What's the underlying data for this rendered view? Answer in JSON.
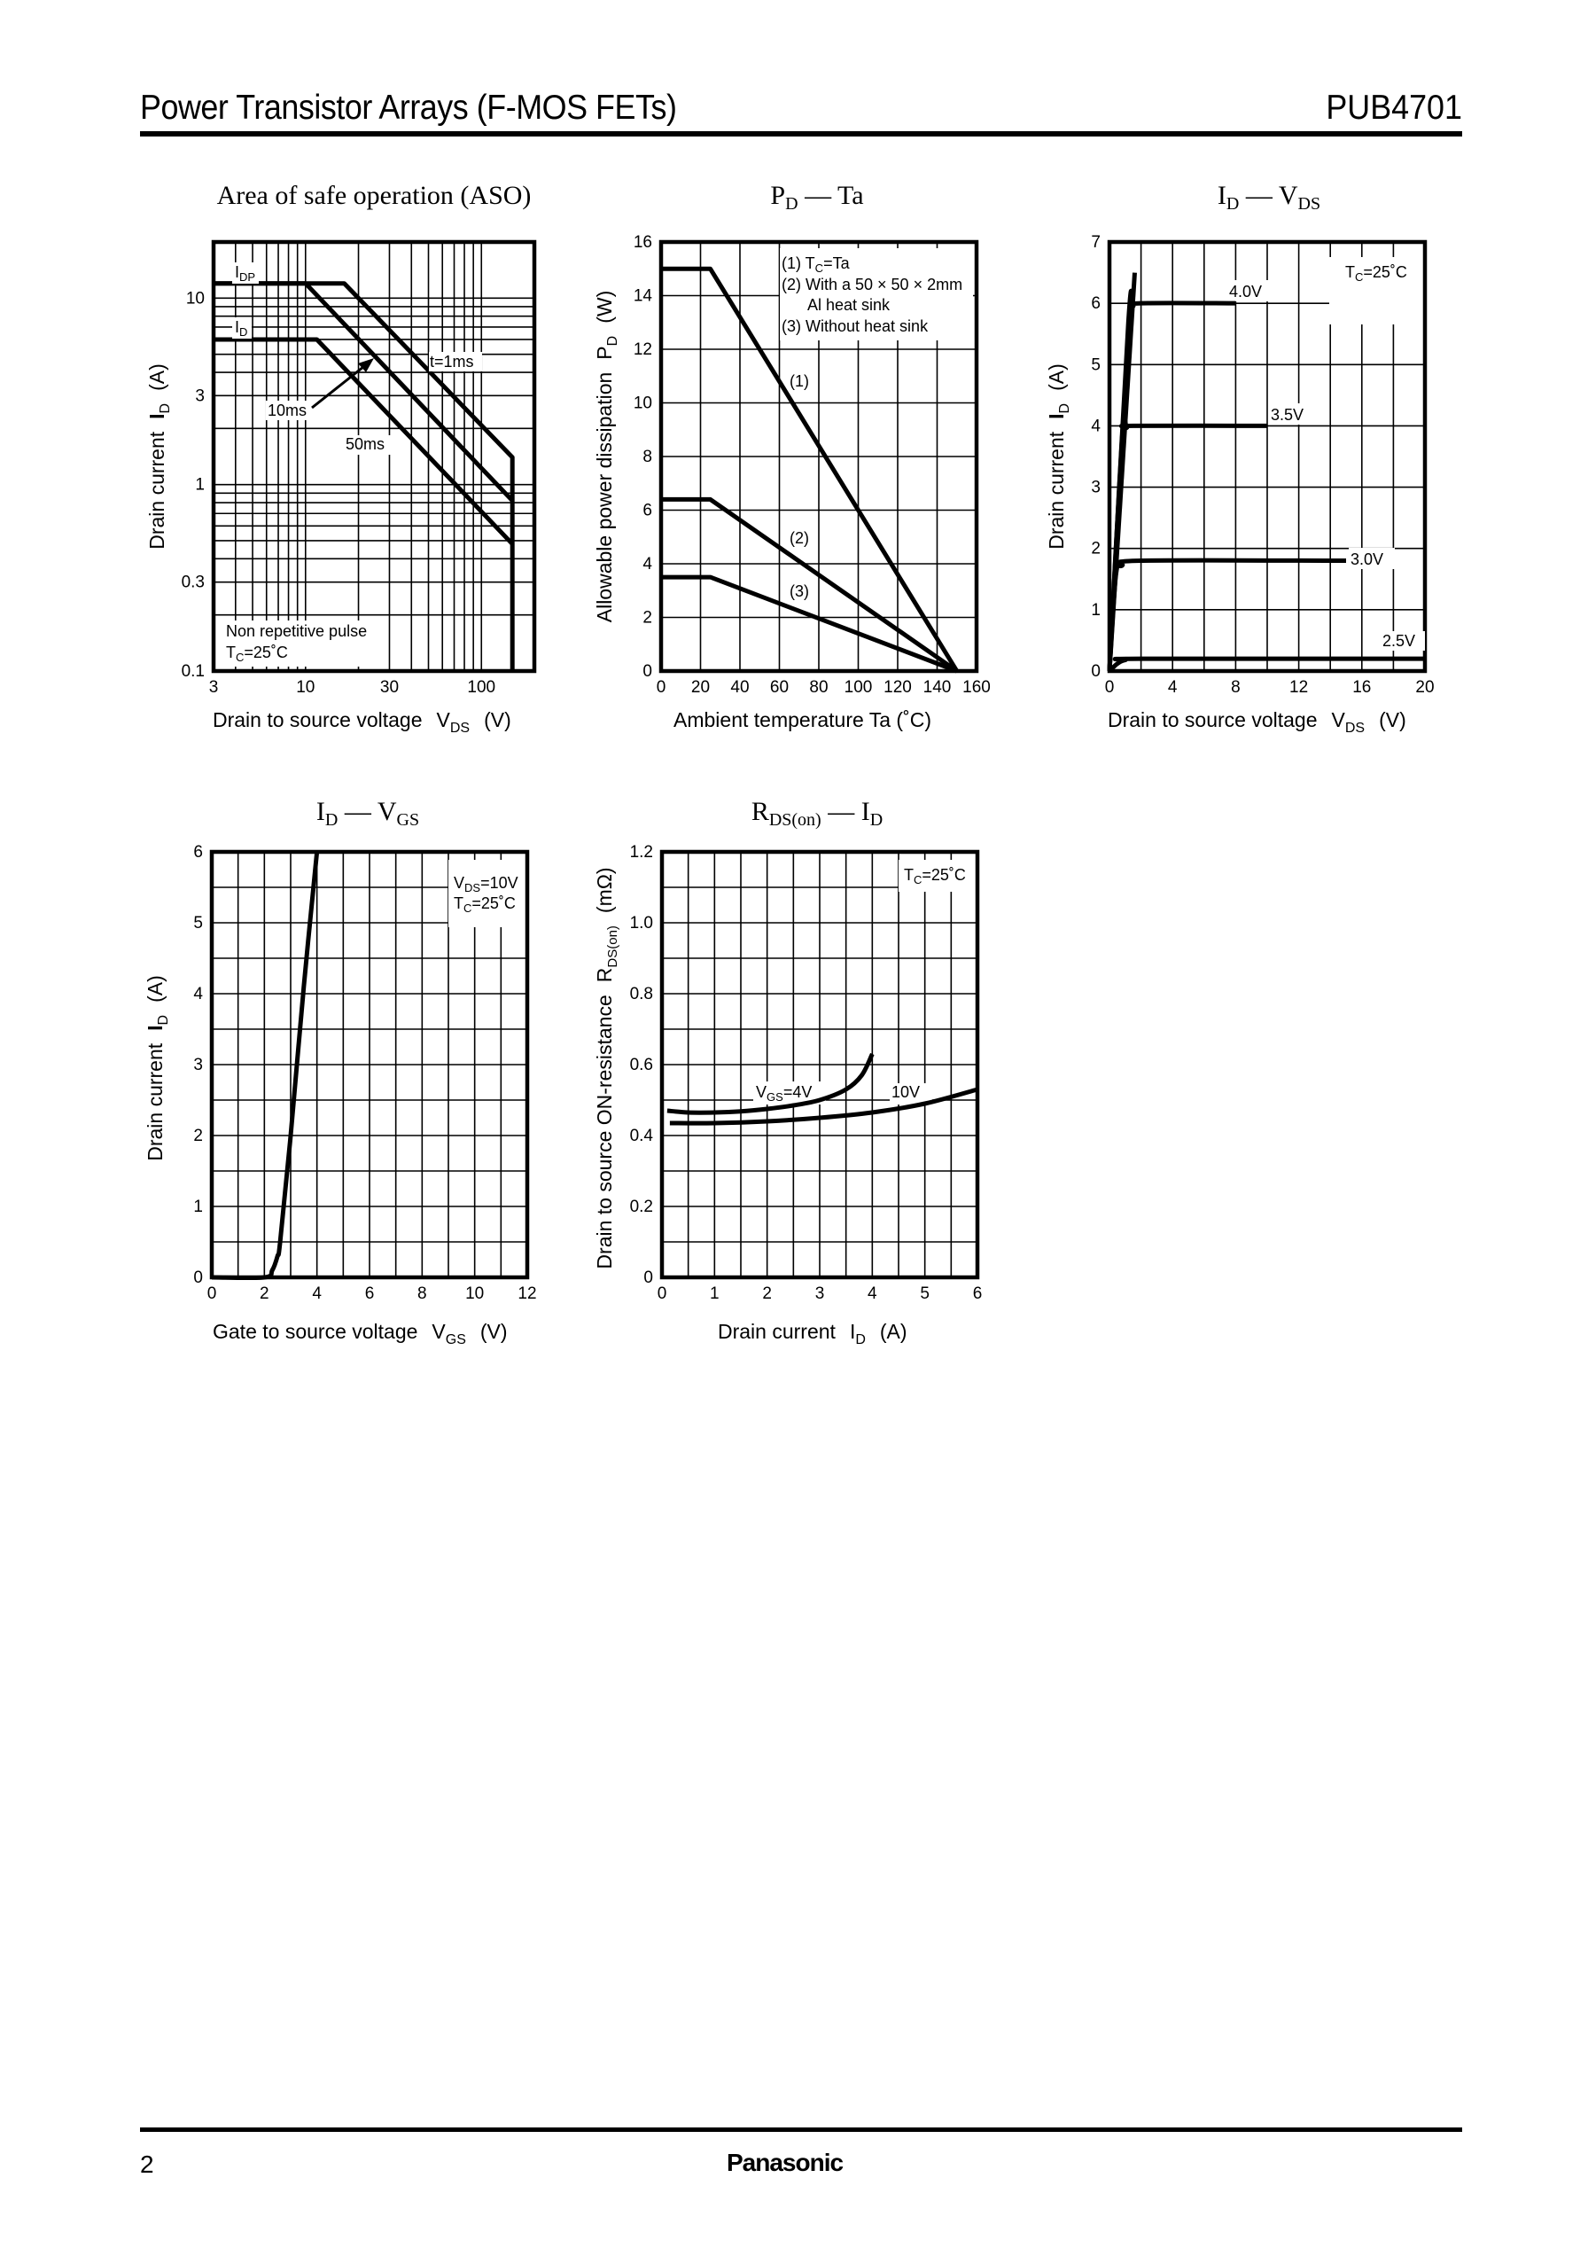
{
  "header": {
    "title": "Power Transistor Arrays (F-MOS FETs)",
    "part_number": "PUB4701"
  },
  "footer": {
    "page_number": "2",
    "brand": "Panasonic"
  },
  "chart_data": [
    {
      "id": "aso",
      "type": "line",
      "title": "Area of safe operation (ASO)",
      "xlabel": "Drain to source voltage VDS (V)",
      "ylabel": "Drain current ID (A)",
      "xscale": "log",
      "yscale": "log",
      "xlim": [
        3,
        200
      ],
      "ylim": [
        0.1,
        20
      ],
      "xticks": [
        3,
        10,
        30,
        100
      ],
      "yticks": [
        0.1,
        0.3,
        1,
        3,
        10
      ],
      "grid": true,
      "annotations": [
        "IDP",
        "ID",
        "t=1ms",
        "10ms",
        "50ms",
        "Non repetitive pulse",
        "TC=25°C"
      ],
      "series": [
        {
          "name": "t=1ms",
          "x": [
            3,
            16.6,
            150,
            150
          ],
          "y": [
            12,
            12,
            1.4,
            0.1
          ]
        },
        {
          "name": "10ms",
          "x": [
            3,
            10,
            150
          ],
          "y": [
            12,
            12,
            0.82
          ]
        },
        {
          "name": "50ms",
          "x": [
            3,
            11.6,
            150
          ],
          "y": [
            6,
            6,
            0.48
          ]
        }
      ],
      "labels": {
        "IDP": 12,
        "ID": 6
      }
    },
    {
      "id": "pd_ta",
      "type": "line",
      "title": "PD — Ta",
      "xlabel": "Ambient temperature Ta (°C)",
      "ylabel": "Allowable power dissipation PD (W)",
      "xlim": [
        0,
        160
      ],
      "ylim": [
        0,
        16
      ],
      "xticks": [
        0,
        20,
        40,
        60,
        80,
        100,
        120,
        140,
        160
      ],
      "yticks": [
        0,
        2,
        4,
        6,
        8,
        10,
        12,
        14,
        16
      ],
      "grid": true,
      "legend": [
        "(1) TC=Ta",
        "(2) With a 50 × 50 × 2mm Al heat sink",
        "(3) Without heat sink"
      ],
      "series": [
        {
          "name": "(1)",
          "x": [
            0,
            25,
            150
          ],
          "y": [
            15,
            15,
            0
          ]
        },
        {
          "name": "(2)",
          "x": [
            0,
            25,
            150
          ],
          "y": [
            6.4,
            6.4,
            0
          ]
        },
        {
          "name": "(3)",
          "x": [
            0,
            25,
            150
          ],
          "y": [
            3.5,
            3.5,
            0
          ]
        }
      ]
    },
    {
      "id": "id_vds",
      "type": "line",
      "title": "ID — VDS",
      "xlabel": "Drain to source voltage VDS (V)",
      "ylabel": "Drain current ID (A)",
      "xlim": [
        0,
        20
      ],
      "ylim": [
        0,
        7
      ],
      "xticks": [
        0,
        4,
        8,
        12,
        16,
        20
      ],
      "yticks": [
        0,
        1,
        2,
        3,
        4,
        5,
        6,
        7
      ],
      "grid": true,
      "annotation": "TC=25°C",
      "series": [
        {
          "name": "VGS=4.0V",
          "x": [
            0,
            1.2,
            1.5,
            2,
            8
          ],
          "y": [
            0,
            5.7,
            5.95,
            6.0,
            6.0
          ]
        },
        {
          "name": "VGS=3.5V",
          "x": [
            0,
            0.8,
            1.1,
            1.5,
            10
          ],
          "y": [
            0,
            3.8,
            3.97,
            4.0,
            4.0
          ]
        },
        {
          "name": "VGS=3.0V",
          "x": [
            0,
            0.4,
            0.8,
            2,
            15
          ],
          "y": [
            0,
            1.55,
            1.72,
            1.8,
            1.8
          ]
        },
        {
          "name": "VGS=2.5V",
          "x": [
            0,
            0.5,
            1,
            2,
            20
          ],
          "y": [
            0,
            0.12,
            0.18,
            0.2,
            0.2
          ]
        },
        {
          "name": "linear-region",
          "x": [
            0,
            1.6
          ],
          "y": [
            0,
            6.5
          ]
        }
      ]
    },
    {
      "id": "id_vgs",
      "type": "line",
      "title": "ID — VGS",
      "xlabel": "Gate to source voltage VGS (V)",
      "ylabel": "Drain current ID (A)",
      "xlim": [
        0,
        12
      ],
      "ylim": [
        0,
        6
      ],
      "xticks": [
        0,
        2,
        4,
        6,
        8,
        10,
        12
      ],
      "yticks": [
        0,
        1,
        2,
        3,
        4,
        5,
        6
      ],
      "grid": true,
      "annotation": [
        "VDS=10V",
        "TC=25°C"
      ],
      "series": [
        {
          "name": "ID",
          "x": [
            0,
            2,
            2.3,
            2.5,
            2.6,
            3.0,
            3.5,
            4.0
          ],
          "y": [
            0,
            0,
            0.1,
            0.3,
            0.5,
            2.0,
            4.1,
            6.0
          ]
        }
      ]
    },
    {
      "id": "rdson_id",
      "type": "line",
      "title": "RDS(on) — ID",
      "xlabel": "Drain current ID (A)",
      "ylabel": "Drain to source ON-resistance RDS(on) (mΩ)",
      "xlim": [
        0,
        6
      ],
      "ylim": [
        0,
        1.2
      ],
      "xticks": [
        0,
        1,
        2,
        3,
        4,
        5,
        6
      ],
      "yticks": [
        0,
        0.2,
        0.4,
        0.6,
        0.8,
        1.0,
        1.2
      ],
      "grid": true,
      "annotation": "TC=25°C",
      "series": [
        {
          "name": "VGS=4V",
          "x": [
            0.1,
            0.5,
            1,
            1.5,
            2,
            2.5,
            3,
            3.5,
            3.8,
            4.0
          ],
          "y": [
            0.47,
            0.465,
            0.465,
            0.468,
            0.475,
            0.485,
            0.5,
            0.53,
            0.57,
            0.63
          ]
        },
        {
          "name": "10V",
          "x": [
            0.15,
            1,
            2,
            3,
            4,
            5,
            6
          ],
          "y": [
            0.435,
            0.435,
            0.44,
            0.45,
            0.465,
            0.49,
            0.53
          ]
        }
      ]
    }
  ],
  "charts": {
    "aso": {
      "title": "Area of safe operation (ASO)",
      "x_ticks": [
        "3",
        "10",
        "30",
        "100"
      ],
      "y_ticks": [
        "0.1",
        "0.3",
        "1",
        "3",
        "10"
      ],
      "xlabel_main": "Drain to source voltage",
      "xlabel_sym": "V",
      "xlabel_sub": "DS",
      "xlabel_unit": "(V)",
      "ylabel_main": "Drain current",
      "ylabel_sym": "I",
      "ylabel_sub": "D",
      "ylabel_unit": "(A)",
      "lbl_idp": "I",
      "lbl_idp_sub": "DP",
      "lbl_id": "I",
      "lbl_id_sub": "D",
      "lbl_1ms": "t=1ms",
      "lbl_10ms": "10ms",
      "lbl_50ms": "50ms",
      "note1": "Non repetitive pulse",
      "note2_T": "T",
      "note2_sub": "C",
      "note2_val": "=25˚C"
    },
    "pd": {
      "title_main": "P",
      "title_sub": "D",
      "title_rest": " — Ta",
      "x_ticks": [
        "0",
        "20",
        "40",
        "60",
        "80",
        "100",
        "120",
        "140",
        "160"
      ],
      "y_ticks": [
        "0",
        "2",
        "4",
        "6",
        "8",
        "10",
        "12",
        "14",
        "16"
      ],
      "xlabel": "Ambient temperature   Ta   (˚C)",
      "ylabel_main": "Allowable power dissipation",
      "ylabel_sym": "P",
      "ylabel_sub": "D",
      "ylabel_unit": "(W)",
      "leg1_a": "(1) T",
      "leg1_sub": "C",
      "leg1_b": "=Ta",
      "leg2": "(2) With a 50 × 50 × 2mm",
      "leg2b": "Al heat sink",
      "leg3": "(3) Without heat sink",
      "lbl1": "(1)",
      "lbl2": "(2)",
      "lbl3": "(3)"
    },
    "idvds": {
      "title_a": "I",
      "title_a_sub": "D",
      "title_dash": " — ",
      "title_b": "V",
      "title_b_sub": "DS",
      "x_ticks": [
        "0",
        "4",
        "8",
        "12",
        "16",
        "20"
      ],
      "y_ticks": [
        "0",
        "1",
        "2",
        "3",
        "4",
        "5",
        "6",
        "7"
      ],
      "xlabel_main": "Drain to source voltage",
      "xlabel_sym": "V",
      "xlabel_sub": "DS",
      "xlabel_unit": "(V)",
      "ylabel_main": "Drain current",
      "ylabel_sym": "I",
      "ylabel_sub": "D",
      "ylabel_unit": "(A)",
      "tc_T": "T",
      "tc_sub": "C",
      "tc_val": "=25˚C",
      "lbl_40": "4.0V",
      "lbl_35": "3.5V",
      "lbl_30": "3.0V",
      "lbl_25": "2.5V"
    },
    "idvgs": {
      "title_a": "I",
      "title_a_sub": "D",
      "title_dash": " — ",
      "title_b": "V",
      "title_b_sub": "GS",
      "x_ticks": [
        "0",
        "2",
        "4",
        "6",
        "8",
        "10",
        "12"
      ],
      "y_ticks": [
        "0",
        "1",
        "2",
        "3",
        "4",
        "5",
        "6"
      ],
      "xlabel_main": "Gate to source voltage",
      "xlabel_sym": "V",
      "xlabel_sub": "GS",
      "xlabel_unit": "(V)",
      "ylabel_main": "Drain current",
      "ylabel_sym": "I",
      "ylabel_sub": "D",
      "ylabel_unit": "(A)",
      "vds_V": "V",
      "vds_sub": "DS",
      "vds_val": "=10V",
      "tc_T": "T",
      "tc_sub": "C",
      "tc_val": "=25˚C"
    },
    "rds": {
      "title_a": "R",
      "title_a_sub": "DS(on)",
      "title_dash": " — ",
      "title_b": "I",
      "title_b_sub": "D",
      "x_ticks": [
        "0",
        "1",
        "2",
        "3",
        "4",
        "5",
        "6"
      ],
      "y_ticks": [
        "0",
        "0.2",
        "0.4",
        "0.6",
        "0.8",
        "1.0",
        "1.2"
      ],
      "xlabel_main": "Drain current",
      "xlabel_sym": "I",
      "xlabel_sub": "D",
      "xlabel_unit": "(A)",
      "ylabel_main": "Drain to source ON-resistance",
      "ylabel_sym": "R",
      "ylabel_sub": "DS(on)",
      "ylabel_unit": "(mΩ)",
      "tc_T": "T",
      "tc_sub": "C",
      "tc_val": "=25˚C",
      "lbl_4v_V": "V",
      "lbl_4v_sub": "GS",
      "lbl_4v_val": "=4V",
      "lbl_10v": "10V"
    }
  }
}
